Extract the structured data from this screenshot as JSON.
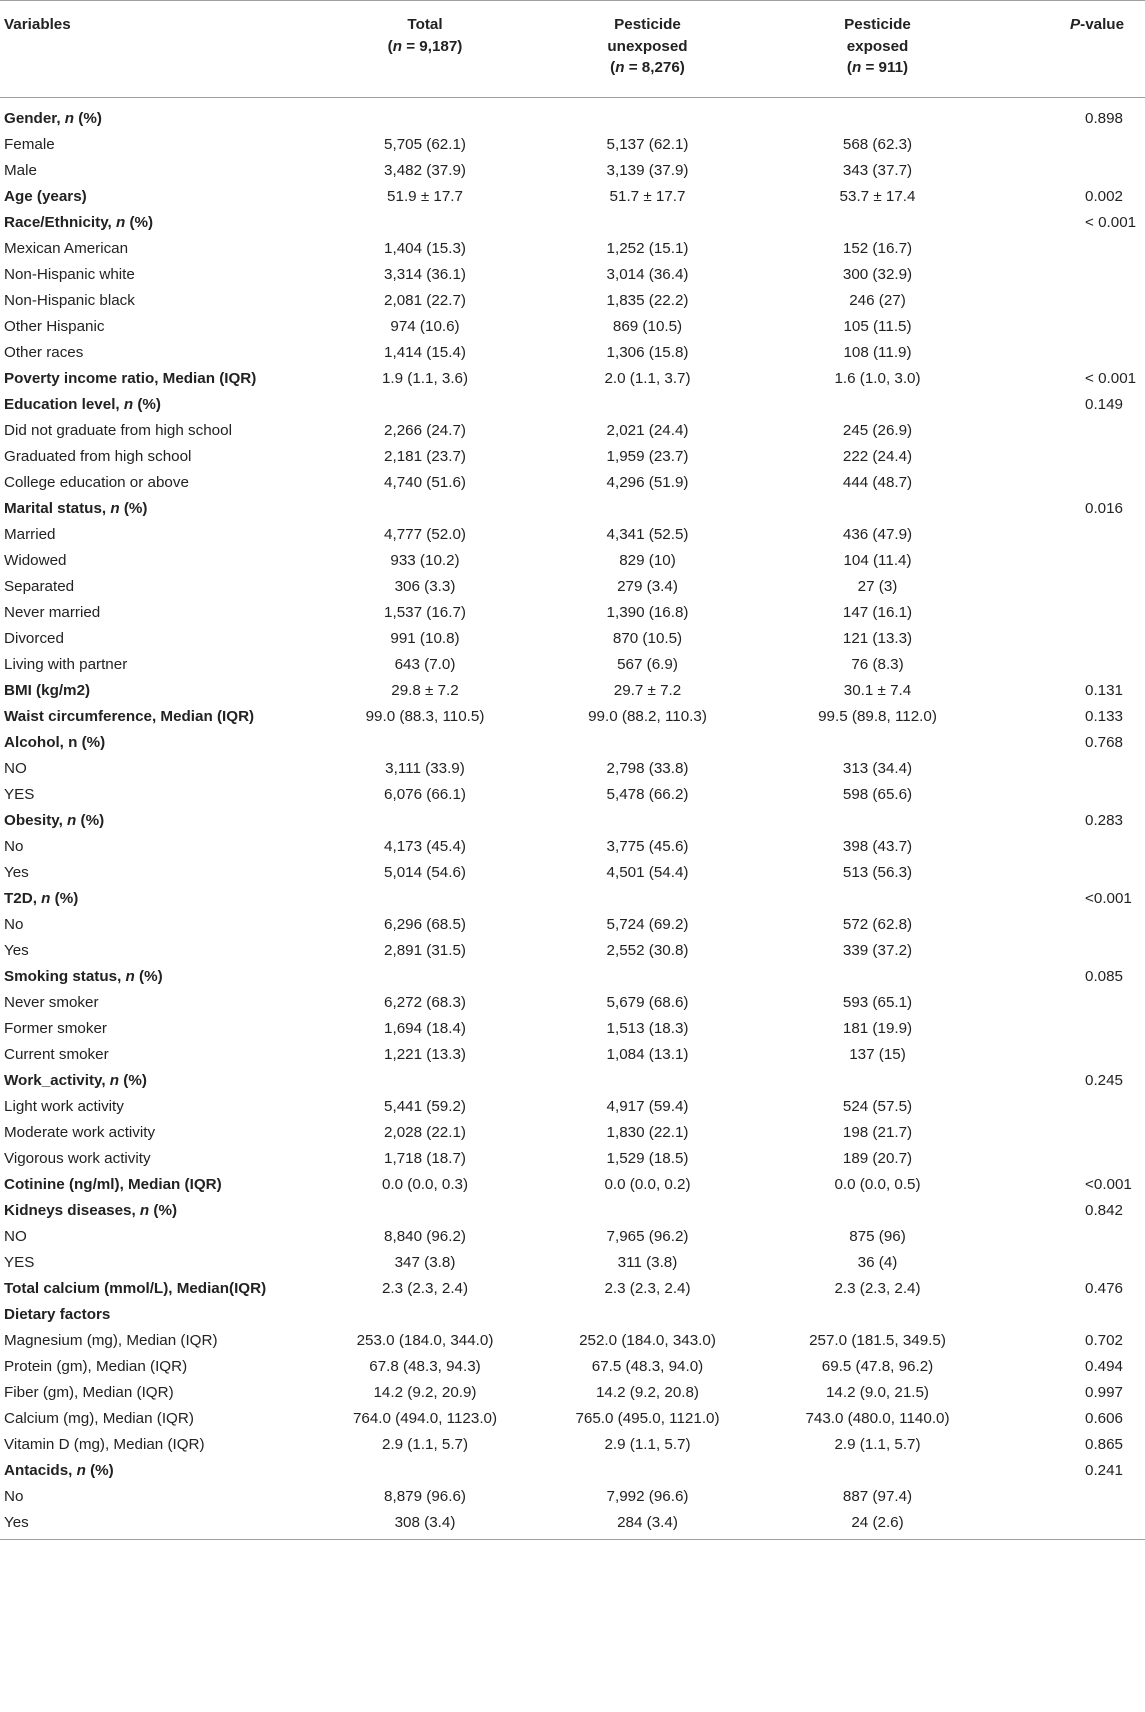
{
  "header": {
    "variables": "Variables",
    "total_line1": "Total",
    "total_line2": "(n = 9,187)",
    "unexposed_line1": "Pesticide",
    "unexposed_line2": "unexposed",
    "unexposed_line3": "(n = 8,276)",
    "exposed_line1": "Pesticide",
    "exposed_line2": "exposed",
    "exposed_line3": "(n = 911)",
    "pvalue": "P-value"
  },
  "rows": [
    {
      "label": "Gender, n (%)",
      "bold": true,
      "total": "",
      "unexposed": "",
      "exposed": "",
      "p": "0.898"
    },
    {
      "label": "Female",
      "bold": false,
      "total": "5,705 (62.1)",
      "unexposed": "5,137 (62.1)",
      "exposed": "568 (62.3)",
      "p": ""
    },
    {
      "label": "Male",
      "bold": false,
      "total": "3,482 (37.9)",
      "unexposed": "3,139 (37.9)",
      "exposed": "343 (37.7)",
      "p": ""
    },
    {
      "label": "Age (years)",
      "bold": true,
      "total": "51.9 ± 17.7",
      "unexposed": "51.7 ± 17.7",
      "exposed": "53.7 ± 17.4",
      "p": "0.002"
    },
    {
      "label": "Race/Ethnicity, n (%)",
      "bold": true,
      "total": "",
      "unexposed": "",
      "exposed": "",
      "p": "< 0.001"
    },
    {
      "label": "Mexican American",
      "bold": false,
      "total": "1,404 (15.3)",
      "unexposed": "1,252 (15.1)",
      "exposed": "152 (16.7)",
      "p": ""
    },
    {
      "label": "Non-Hispanic white",
      "bold": false,
      "total": "3,314 (36.1)",
      "unexposed": "3,014 (36.4)",
      "exposed": "300 (32.9)",
      "p": ""
    },
    {
      "label": "Non-Hispanic black",
      "bold": false,
      "total": "2,081 (22.7)",
      "unexposed": "1,835 (22.2)",
      "exposed": "246 (27)",
      "p": ""
    },
    {
      "label": "Other Hispanic",
      "bold": false,
      "total": "974 (10.6)",
      "unexposed": "869 (10.5)",
      "exposed": "105 (11.5)",
      "p": ""
    },
    {
      "label": "Other races",
      "bold": false,
      "total": "1,414 (15.4)",
      "unexposed": "1,306 (15.8)",
      "exposed": "108 (11.9)",
      "p": ""
    },
    {
      "label": "Poverty income ratio, Median (IQR)",
      "bold": true,
      "total": "1.9 (1.1, 3.6)",
      "unexposed": "2.0 (1.1, 3.7)",
      "exposed": "1.6 (1.0, 3.0)",
      "p": "< 0.001"
    },
    {
      "label": "Education level, n (%)",
      "bold": true,
      "total": "",
      "unexposed": "",
      "exposed": "",
      "p": "0.149"
    },
    {
      "label": "Did not graduate from high school",
      "bold": false,
      "total": "2,266 (24.7)",
      "unexposed": "2,021 (24.4)",
      "exposed": "245 (26.9)",
      "p": ""
    },
    {
      "label": "Graduated from high school",
      "bold": false,
      "total": "2,181 (23.7)",
      "unexposed": "1,959 (23.7)",
      "exposed": "222 (24.4)",
      "p": ""
    },
    {
      "label": "College education or above",
      "bold": false,
      "total": "4,740 (51.6)",
      "unexposed": "4,296 (51.9)",
      "exposed": "444 (48.7)",
      "p": ""
    },
    {
      "label": "Marital status, n (%)",
      "bold": true,
      "total": "",
      "unexposed": "",
      "exposed": "",
      "p": "0.016"
    },
    {
      "label": "Married",
      "bold": false,
      "total": "4,777 (52.0)",
      "unexposed": "4,341 (52.5)",
      "exposed": "436 (47.9)",
      "p": ""
    },
    {
      "label": "Widowed",
      "bold": false,
      "total": "933 (10.2)",
      "unexposed": "829 (10)",
      "exposed": "104 (11.4)",
      "p": ""
    },
    {
      "label": "Separated",
      "bold": false,
      "total": "306 (3.3)",
      "unexposed": "279 (3.4)",
      "exposed": "27 (3)",
      "p": ""
    },
    {
      "label": "Never married",
      "bold": false,
      "total": "1,537 (16.7)",
      "unexposed": "1,390 (16.8)",
      "exposed": "147 (16.1)",
      "p": ""
    },
    {
      "label": "Divorced",
      "bold": false,
      "total": "991 (10.8)",
      "unexposed": "870 (10.5)",
      "exposed": "121 (13.3)",
      "p": ""
    },
    {
      "label": "Living with partner",
      "bold": false,
      "total": "643 (7.0)",
      "unexposed": "567 (6.9)",
      "exposed": "76 (8.3)",
      "p": ""
    },
    {
      "label": "BMI (kg/m2)",
      "bold": true,
      "total": "29.8 ± 7.2",
      "unexposed": "29.7 ± 7.2",
      "exposed": "30.1 ± 7.4",
      "p": "0.131"
    },
    {
      "label": "Waist circumference, Median (IQR)",
      "bold": true,
      "total": "99.0 (88.3, 110.5)",
      "unexposed": "99.0 (88.2, 110.3)",
      "exposed": "99.5 (89.8, 112.0)",
      "p": "0.133"
    },
    {
      "label": "Alcohol, n (%)",
      "bold": true,
      "total": "",
      "unexposed": "",
      "exposed": "",
      "p": "0.768"
    },
    {
      "label": "NO",
      "bold": false,
      "total": "3,111 (33.9)",
      "unexposed": "2,798 (33.8)",
      "exposed": "313 (34.4)",
      "p": ""
    },
    {
      "label": "YES",
      "bold": false,
      "total": "6,076 (66.1)",
      "unexposed": "5,478 (66.2)",
      "exposed": "598 (65.6)",
      "p": ""
    },
    {
      "label": "Obesity, n (%)",
      "bold": true,
      "total": "",
      "unexposed": "",
      "exposed": "",
      "p": "0.283"
    },
    {
      "label": "No",
      "bold": false,
      "total": "4,173 (45.4)",
      "unexposed": "3,775 (45.6)",
      "exposed": "398 (43.7)",
      "p": ""
    },
    {
      "label": "Yes",
      "bold": false,
      "total": "5,014 (54.6)",
      "unexposed": "4,501 (54.4)",
      "exposed": "513 (56.3)",
      "p": ""
    },
    {
      "label": "T2D, n (%)",
      "bold": true,
      "total": "",
      "unexposed": "",
      "exposed": "",
      "p": "<0.001"
    },
    {
      "label": "No",
      "bold": false,
      "total": "6,296 (68.5)",
      "unexposed": "5,724 (69.2)",
      "exposed": "572 (62.8)",
      "p": ""
    },
    {
      "label": "Yes",
      "bold": false,
      "total": "2,891 (31.5)",
      "unexposed": "2,552 (30.8)",
      "exposed": "339 (37.2)",
      "p": ""
    },
    {
      "label": "Smoking status, n (%)",
      "bold": true,
      "total": "",
      "unexposed": "",
      "exposed": "",
      "p": "0.085"
    },
    {
      "label": "Never smoker",
      "bold": false,
      "total": "6,272 (68.3)",
      "unexposed": "5,679 (68.6)",
      "exposed": "593 (65.1)",
      "p": ""
    },
    {
      "label": "Former smoker",
      "bold": false,
      "total": "1,694 (18.4)",
      "unexposed": "1,513 (18.3)",
      "exposed": "181 (19.9)",
      "p": ""
    },
    {
      "label": "Current smoker",
      "bold": false,
      "total": "1,221 (13.3)",
      "unexposed": "1,084 (13.1)",
      "exposed": "137 (15)",
      "p": ""
    },
    {
      "label": "Work_activity, n (%)",
      "bold": true,
      "total": "",
      "unexposed": "",
      "exposed": "",
      "p": "0.245"
    },
    {
      "label": "Light work activity",
      "bold": false,
      "total": "5,441 (59.2)",
      "unexposed": "4,917 (59.4)",
      "exposed": "524 (57.5)",
      "p": ""
    },
    {
      "label": "Moderate work activity",
      "bold": false,
      "total": "2,028 (22.1)",
      "unexposed": "1,830 (22.1)",
      "exposed": "198 (21.7)",
      "p": ""
    },
    {
      "label": "Vigorous work activity",
      "bold": false,
      "total": "1,718 (18.7)",
      "unexposed": "1,529 (18.5)",
      "exposed": "189 (20.7)",
      "p": ""
    },
    {
      "label": "Cotinine (ng/ml), Median (IQR)",
      "bold": true,
      "total": "0.0 (0.0, 0.3)",
      "unexposed": "0.0 (0.0, 0.2)",
      "exposed": "0.0 (0.0, 0.5)",
      "p": "<0.001"
    },
    {
      "label": "Kidneys diseases, n (%)",
      "bold": true,
      "total": "",
      "unexposed": "",
      "exposed": "",
      "p": "0.842"
    },
    {
      "label": "NO",
      "bold": false,
      "total": "8,840 (96.2)",
      "unexposed": "7,965 (96.2)",
      "exposed": "875 (96)",
      "p": ""
    },
    {
      "label": "YES",
      "bold": false,
      "total": "347 (3.8)",
      "unexposed": "311 (3.8)",
      "exposed": "36 (4)",
      "p": ""
    },
    {
      "label": "Total calcium (mmol/L), Median(IQR)",
      "bold": true,
      "total": "2.3 (2.3, 2.4)",
      "unexposed": "2.3 (2.3, 2.4)",
      "exposed": "2.3 (2.3, 2.4)",
      "p": "0.476"
    },
    {
      "label": "Dietary factors",
      "bold": true,
      "total": "",
      "unexposed": "",
      "exposed": "",
      "p": ""
    },
    {
      "label": "Magnesium (mg), Median (IQR)",
      "bold": false,
      "total": "253.0 (184.0, 344.0)",
      "unexposed": "252.0 (184.0, 343.0)",
      "exposed": "257.0 (181.5, 349.5)",
      "p": "0.702"
    },
    {
      "label": "Protein (gm), Median (IQR)",
      "bold": false,
      "total": "67.8 (48.3, 94.3)",
      "unexposed": "67.5 (48.3, 94.0)",
      "exposed": "69.5 (47.8, 96.2)",
      "p": "0.494"
    },
    {
      "label": "Fiber (gm), Median (IQR)",
      "bold": false,
      "total": "14.2 (9.2, 20.9)",
      "unexposed": "14.2 (9.2, 20.8)",
      "exposed": "14.2 (9.0, 21.5)",
      "p": "0.997"
    },
    {
      "label": "Calcium (mg), Median (IQR)",
      "bold": false,
      "total": "764.0 (494.0, 1123.0)",
      "unexposed": "765.0 (495.0, 1121.0)",
      "exposed": "743.0 (480.0, 1140.0)",
      "p": "0.606"
    },
    {
      "label": "Vitamin D (mg), Median (IQR)",
      "bold": false,
      "total": "2.9 (1.1, 5.7)",
      "unexposed": "2.9 (1.1, 5.7)",
      "exposed": "2.9 (1.1, 5.7)",
      "p": "0.865"
    },
    {
      "label": "Antacids, n (%)",
      "bold": true,
      "total": "",
      "unexposed": "",
      "exposed": "",
      "p": "0.241"
    },
    {
      "label": "No",
      "bold": false,
      "total": "8,879 (96.6)",
      "unexposed": "7,992 (96.6)",
      "exposed": "887 (97.4)",
      "p": ""
    },
    {
      "label": "Yes",
      "bold": false,
      "total": "308 (3.4)",
      "unexposed": "284 (3.4)",
      "exposed": "24 (2.6)",
      "p": ""
    }
  ]
}
